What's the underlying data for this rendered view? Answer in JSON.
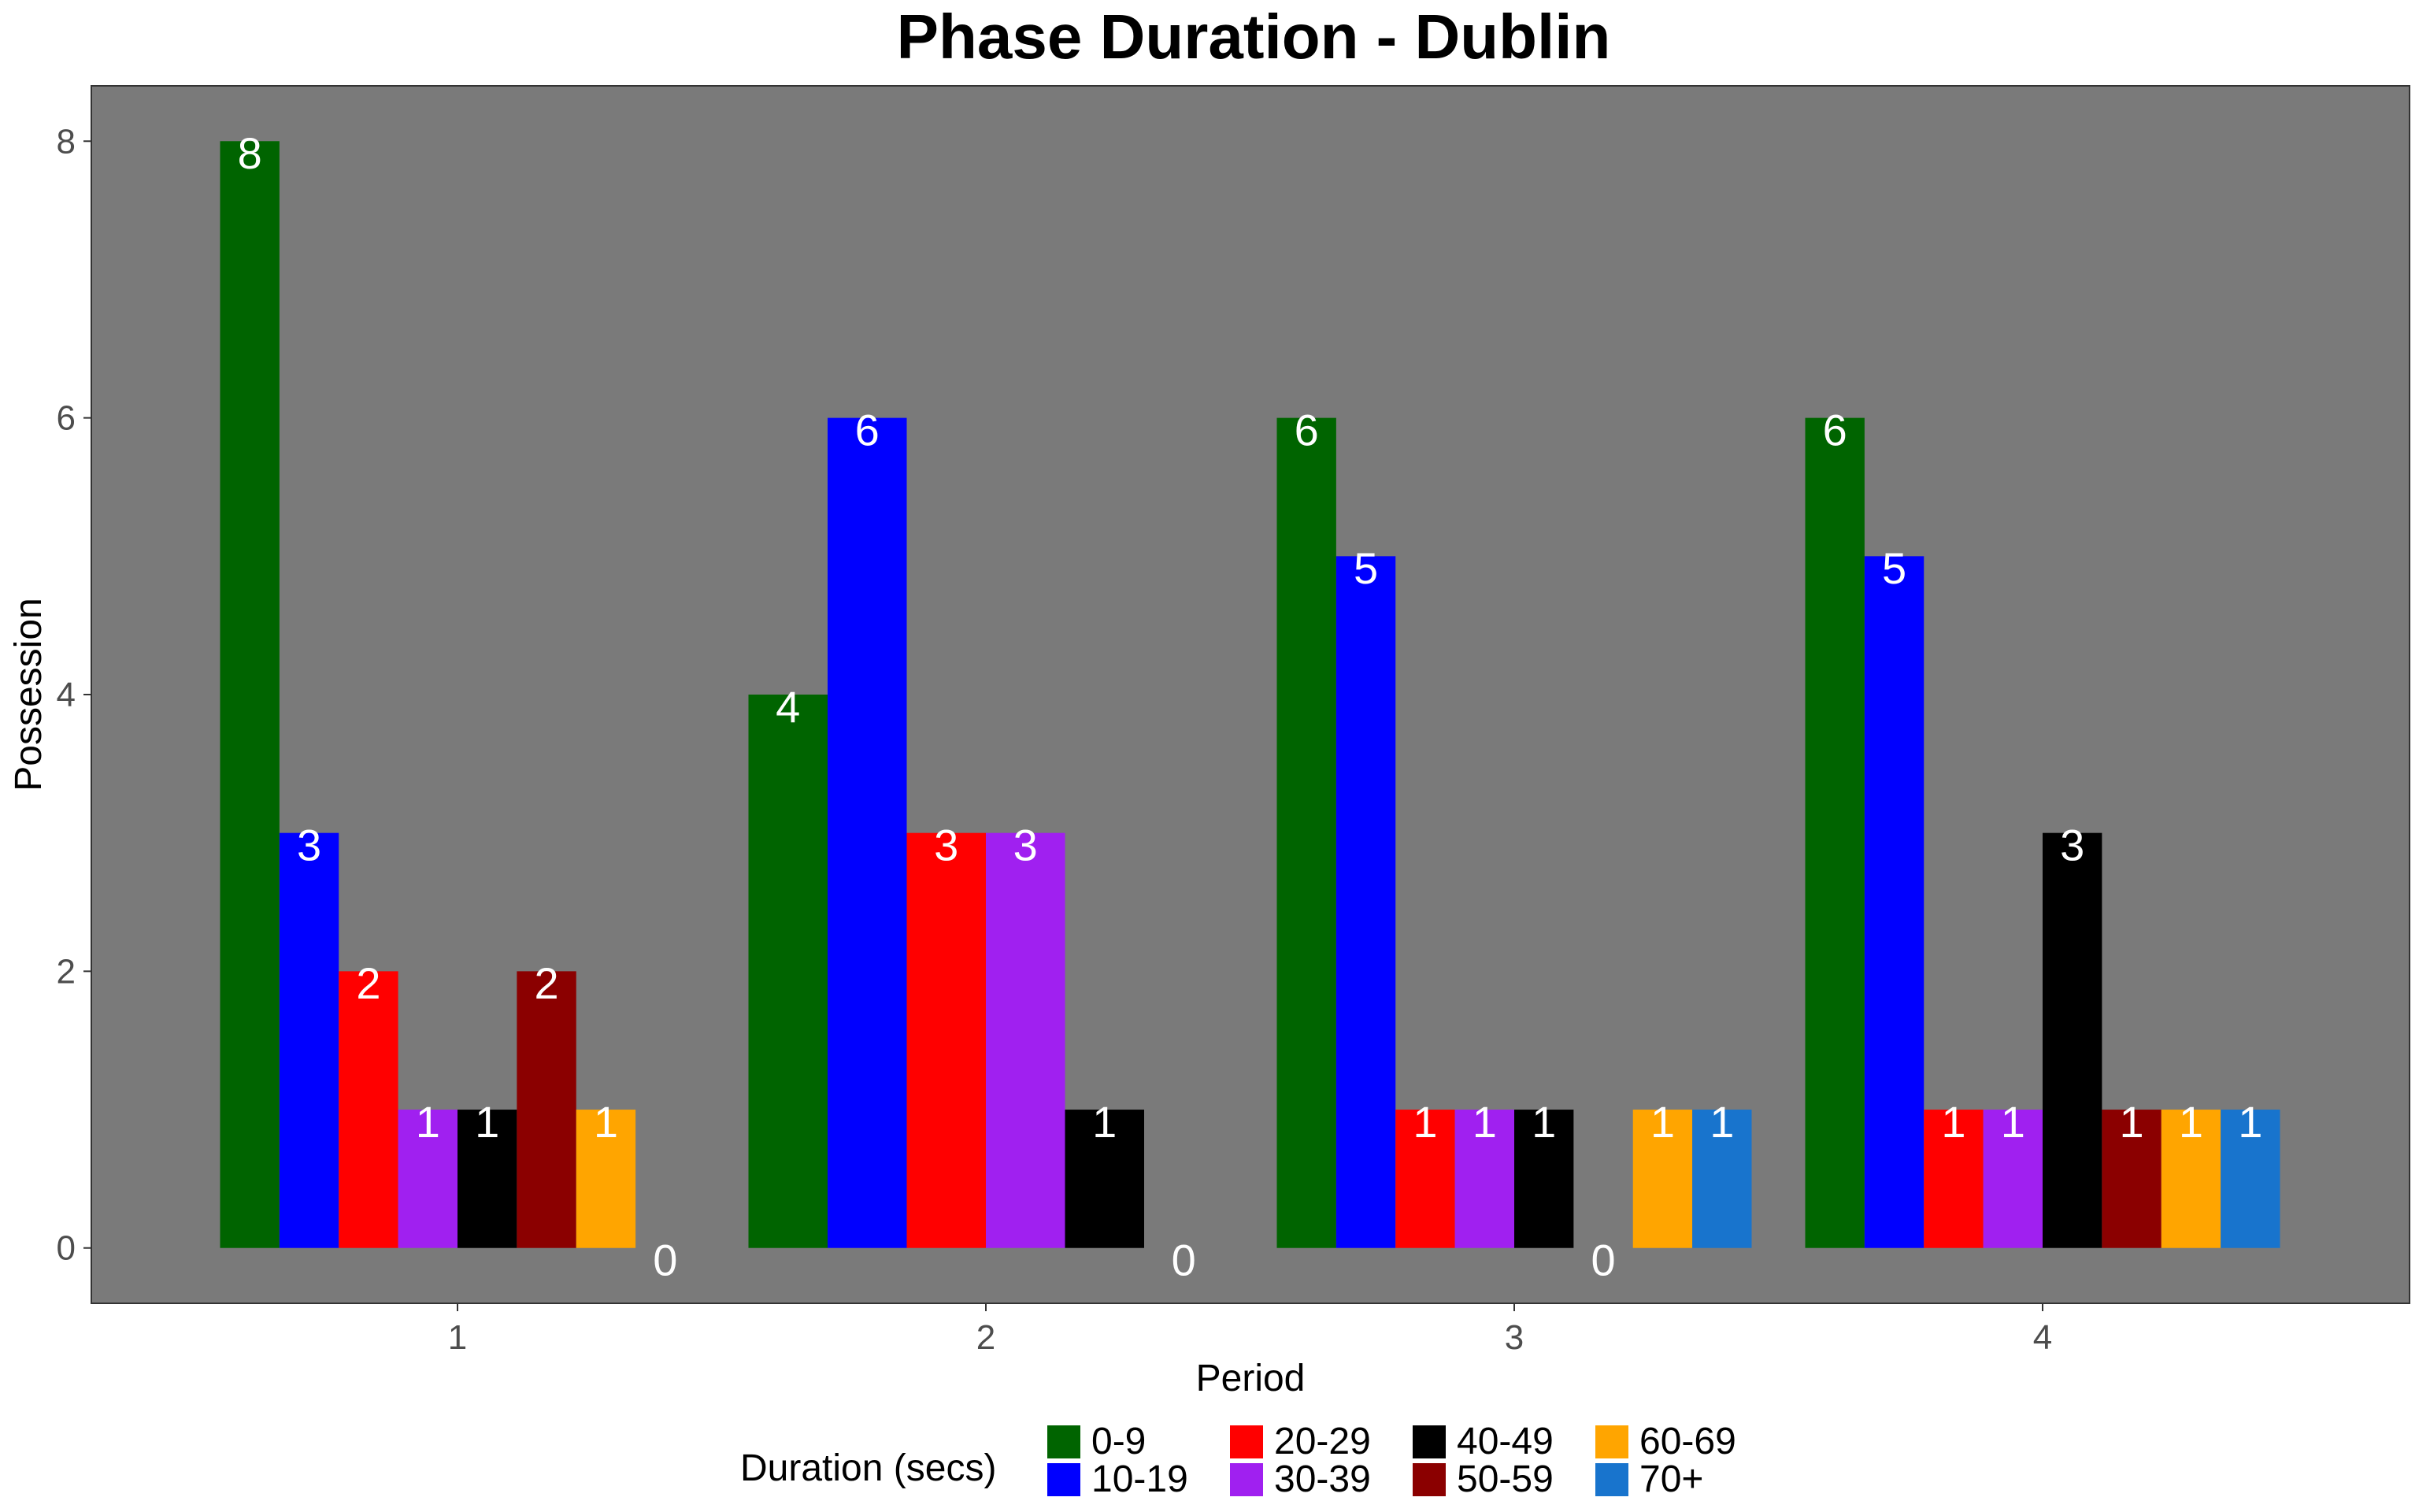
{
  "chart_data": {
    "type": "bar",
    "title": "Phase Duration - Dublin",
    "xlabel": "Period",
    "ylabel": "Possession",
    "categories": [
      "1",
      "2",
      "3",
      "4"
    ],
    "y_ticks": [
      "0",
      "2",
      "4",
      "6",
      "8"
    ],
    "ylim": [
      -0.4,
      8.4
    ],
    "grid": false,
    "panel_background": "#7a7a7a",
    "data_label_color": "#ffffff",
    "legend": {
      "title": "Duration (secs)",
      "position": "bottom"
    },
    "groups": [
      {
        "period": "1",
        "bars": [
          {
            "series": "0-9",
            "value": 8
          },
          {
            "series": "10-19",
            "value": 3
          },
          {
            "series": "20-29",
            "value": 2
          },
          {
            "series": "30-39",
            "value": 1
          },
          {
            "series": "40-49",
            "value": 1
          },
          {
            "series": "50-59",
            "value": 2
          },
          {
            "series": "60-69",
            "value": 1
          },
          {
            "series": "70+",
            "value": 0
          }
        ]
      },
      {
        "period": "2",
        "bars": [
          {
            "series": "0-9",
            "value": 4
          },
          {
            "series": "10-19",
            "value": 6
          },
          {
            "series": "20-29",
            "value": 3
          },
          {
            "series": "30-39",
            "value": 3
          },
          {
            "series": "40-49",
            "value": 1
          },
          {
            "series": "50-59",
            "value": 0
          }
        ]
      },
      {
        "period": "3",
        "bars": [
          {
            "series": "0-9",
            "value": 6
          },
          {
            "series": "10-19",
            "value": 5
          },
          {
            "series": "20-29",
            "value": 1
          },
          {
            "series": "30-39",
            "value": 1
          },
          {
            "series": "40-49",
            "value": 1
          },
          {
            "series": "50-59",
            "value": 0
          },
          {
            "series": "60-69",
            "value": 1
          },
          {
            "series": "70+",
            "value": 1
          }
        ]
      },
      {
        "period": "4",
        "bars": [
          {
            "series": "0-9",
            "value": 6
          },
          {
            "series": "10-19",
            "value": 5
          },
          {
            "series": "20-29",
            "value": 1
          },
          {
            "series": "30-39",
            "value": 1
          },
          {
            "series": "40-49",
            "value": 3
          },
          {
            "series": "50-59",
            "value": 1
          },
          {
            "series": "60-69",
            "value": 1
          },
          {
            "series": "70+",
            "value": 1
          }
        ]
      }
    ],
    "series": [
      {
        "name": "0-9",
        "color": "#006400"
      },
      {
        "name": "10-19",
        "color": "#0000ff"
      },
      {
        "name": "20-29",
        "color": "#ff0000"
      },
      {
        "name": "30-39",
        "color": "#a020f0"
      },
      {
        "name": "40-49",
        "color": "#000000"
      },
      {
        "name": "50-59",
        "color": "#8b0000"
      },
      {
        "name": "60-69",
        "color": "#ffa500"
      },
      {
        "name": "70+",
        "color": "#1874cd"
      }
    ]
  }
}
